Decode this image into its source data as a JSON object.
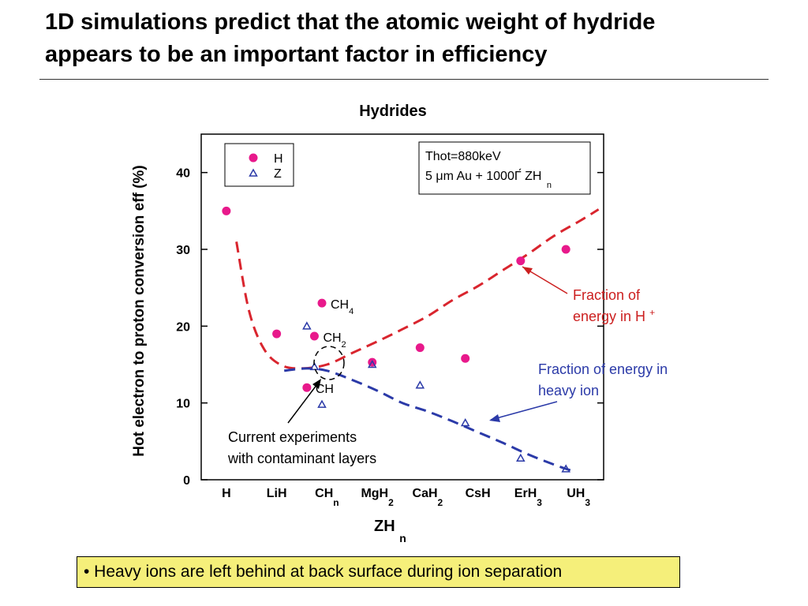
{
  "slide": {
    "title_line1": "1D simulations predict that the atomic weight of hydride",
    "title_line2": "appears to be an important  factor in efficiency",
    "bullet": "• Heavy ions are left behind at back surface during ion separation"
  },
  "colors": {
    "h_series": "#e8198b",
    "z_series": "#2b3aa8",
    "h_curve": "#d9252e",
    "z_curve": "#2b3aa8",
    "h_text": "#cc1f1f",
    "z_text": "#2b3aa8",
    "bullet_bg": "#f5ef7a"
  },
  "chart_data": {
    "type": "scatter",
    "title": "Hydrides",
    "ylabel": "Hot electron to proton conversion eff (%)",
    "xlabel": {
      "main": "ZH",
      "sub": "n"
    },
    "ylim": [
      0,
      45
    ],
    "yticks": [
      0,
      10,
      20,
      30,
      40
    ],
    "grid": false,
    "legend_position": "top-left",
    "categories": [
      {
        "main": "H",
        "sub": ""
      },
      {
        "main": "LiH",
        "sub": ""
      },
      {
        "main": "CH",
        "sub": "n"
      },
      {
        "main": "MgH",
        "sub": "2"
      },
      {
        "main": "CaH",
        "sub": "2"
      },
      {
        "main": "CsH",
        "sub": ""
      },
      {
        "main": "ErH",
        "sub": "3"
      },
      {
        "main": "UH",
        "sub": "3"
      }
    ],
    "series": [
      {
        "name": "H",
        "marker": "circle",
        "points": [
          {
            "x": 1,
            "y": 35.0
          },
          {
            "x": 2,
            "y": 19.0
          },
          {
            "x": 2.9,
            "y": 23.0,
            "label": "CH",
            "label_sub": "4"
          },
          {
            "x": 2.75,
            "y": 18.7,
            "label": "CH",
            "label_sub": "2"
          },
          {
            "x": 2.6,
            "y": 12.0,
            "label": "CH",
            "label_sub": ""
          },
          {
            "x": 3.9,
            "y": 15.3
          },
          {
            "x": 4.85,
            "y": 17.2
          },
          {
            "x": 5.75,
            "y": 15.8
          },
          {
            "x": 6.85,
            "y": 28.5
          },
          {
            "x": 7.75,
            "y": 30.0
          }
        ]
      },
      {
        "name": "Z",
        "marker": "triangle",
        "points": [
          {
            "x": 2.6,
            "y": 20.0
          },
          {
            "x": 2.75,
            "y": 14.7
          },
          {
            "x": 2.9,
            "y": 9.8
          },
          {
            "x": 3.9,
            "y": 15.0
          },
          {
            "x": 4.85,
            "y": 12.3
          },
          {
            "x": 5.75,
            "y": 7.4
          },
          {
            "x": 6.85,
            "y": 2.8
          },
          {
            "x": 7.75,
            "y": 1.4
          }
        ]
      }
    ],
    "trend_h": [
      {
        "x": 1.2,
        "y": 31
      },
      {
        "x": 1.45,
        "y": 22
      },
      {
        "x": 1.75,
        "y": 17
      },
      {
        "x": 2.1,
        "y": 14.9
      },
      {
        "x": 2.5,
        "y": 14.5
      },
      {
        "x": 3.0,
        "y": 15.0
      },
      {
        "x": 3.5,
        "y": 16.5
      },
      {
        "x": 4.0,
        "y": 18.0
      },
      {
        "x": 4.5,
        "y": 19.6
      },
      {
        "x": 5.0,
        "y": 21.3
      },
      {
        "x": 5.5,
        "y": 23.4
      },
      {
        "x": 6.0,
        "y": 25.2
      },
      {
        "x": 6.5,
        "y": 27.3
      },
      {
        "x": 7.0,
        "y": 29.4
      },
      {
        "x": 7.5,
        "y": 31.7
      },
      {
        "x": 8.0,
        "y": 33.6
      },
      {
        "x": 8.4,
        "y": 35.2
      }
    ],
    "trend_z": [
      {
        "x": 2.15,
        "y": 14.2
      },
      {
        "x": 2.6,
        "y": 14.5
      },
      {
        "x": 3.0,
        "y": 14.2
      },
      {
        "x": 3.5,
        "y": 13.0
      },
      {
        "x": 4.0,
        "y": 11.6
      },
      {
        "x": 4.5,
        "y": 10.0
      },
      {
        "x": 5.0,
        "y": 8.9
      },
      {
        "x": 5.5,
        "y": 7.6
      },
      {
        "x": 6.0,
        "y": 6.2
      },
      {
        "x": 6.5,
        "y": 4.8
      },
      {
        "x": 7.0,
        "y": 3.3
      },
      {
        "x": 7.5,
        "y": 2.0
      },
      {
        "x": 7.85,
        "y": 1.2
      }
    ],
    "params_box": {
      "line1": "Thot=880keV",
      "line2": "5 μm Au + 1000Γ́ ZH",
      "line2_sub": "n"
    },
    "annotations": {
      "h_fraction": [
        "Fraction of",
        "energy in H",
        "+"
      ],
      "z_fraction": [
        "Fraction of energy in",
        "heavy ion"
      ],
      "experiments": [
        "Current experiments",
        "with contaminant layers"
      ]
    }
  }
}
